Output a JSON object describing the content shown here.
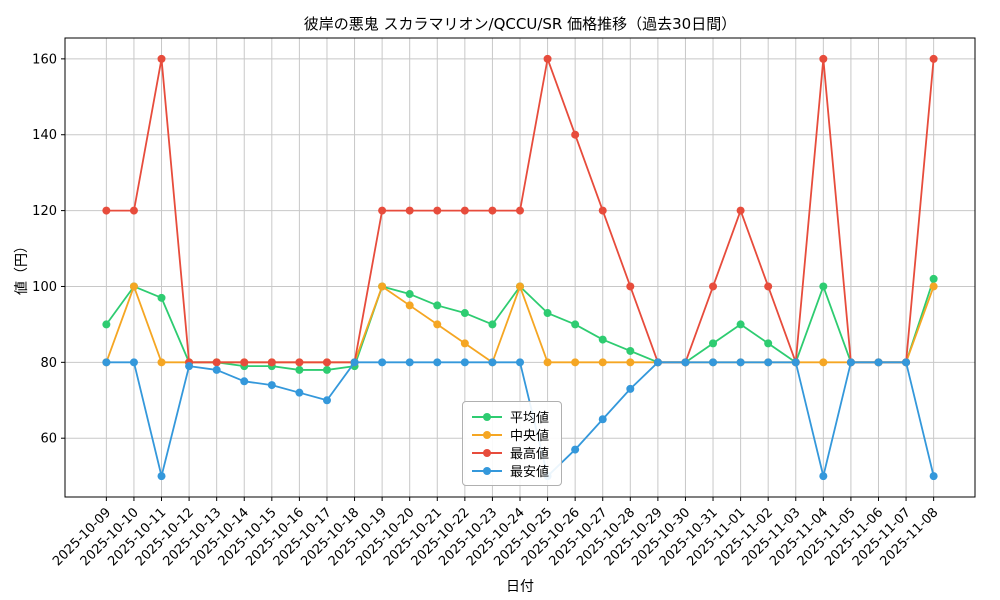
{
  "chart_data": {
    "type": "line",
    "title": "彼岸の悪鬼 スカラマリオン/QCCU/SR 価格推移（過去30日間）",
    "xlabel": "日付",
    "ylabel": "値（円）",
    "x": [
      "2025-10-09",
      "2025-10-10",
      "2025-10-11",
      "2025-10-12",
      "2025-10-13",
      "2025-10-14",
      "2025-10-15",
      "2025-10-16",
      "2025-10-17",
      "2025-10-18",
      "2025-10-19",
      "2025-10-20",
      "2025-10-21",
      "2025-10-22",
      "2025-10-23",
      "2025-10-24",
      "2025-10-25",
      "2025-10-26",
      "2025-10-27",
      "2025-10-28",
      "2025-10-29",
      "2025-10-30",
      "2025-10-31",
      "2025-11-01",
      "2025-11-02",
      "2025-11-03",
      "2025-11-04",
      "2025-11-05",
      "2025-11-06",
      "2025-11-07",
      "2025-11-08"
    ],
    "series": [
      {
        "key": "average",
        "name": "平均値",
        "color": "#2ecc71",
        "values": [
          90,
          100,
          97,
          80,
          80,
          79,
          79,
          78,
          78,
          79,
          100,
          98,
          95,
          93,
          90,
          100,
          93,
          90,
          86,
          83,
          80,
          80,
          85,
          90,
          85,
          80,
          100,
          80,
          80,
          80,
          102
        ]
      },
      {
        "key": "median",
        "name": "中央値",
        "color": "#f5a623",
        "values": [
          80,
          100,
          80,
          80,
          80,
          80,
          80,
          80,
          80,
          80,
          100,
          95,
          90,
          85,
          80,
          100,
          80,
          80,
          80,
          80,
          80,
          80,
          80,
          80,
          80,
          80,
          80,
          80,
          80,
          80,
          100
        ]
      },
      {
        "key": "highest",
        "name": "最高値",
        "color": "#e74c3c",
        "values": [
          120,
          120,
          160,
          80,
          80,
          80,
          80,
          80,
          80,
          80,
          120,
          120,
          120,
          120,
          120,
          120,
          160,
          140,
          120,
          100,
          80,
          80,
          100,
          120,
          100,
          80,
          160,
          80,
          80,
          80,
          160
        ]
      },
      {
        "key": "lowest",
        "name": "最安値",
        "color": "#3498db",
        "values": [
          80,
          80,
          50,
          79,
          78,
          75,
          74,
          72,
          70,
          80,
          80,
          80,
          80,
          80,
          80,
          80,
          50,
          57,
          65,
          73,
          80,
          80,
          80,
          80,
          80,
          80,
          50,
          80,
          80,
          80,
          50
        ]
      }
    ],
    "yticks": [
      60,
      80,
      100,
      120,
      140,
      160
    ],
    "ylim": [
      44.5,
      165.5
    ],
    "grid": true,
    "legend_position": "lower-center-inside",
    "marker": "circle",
    "background": "#ffffff"
  }
}
